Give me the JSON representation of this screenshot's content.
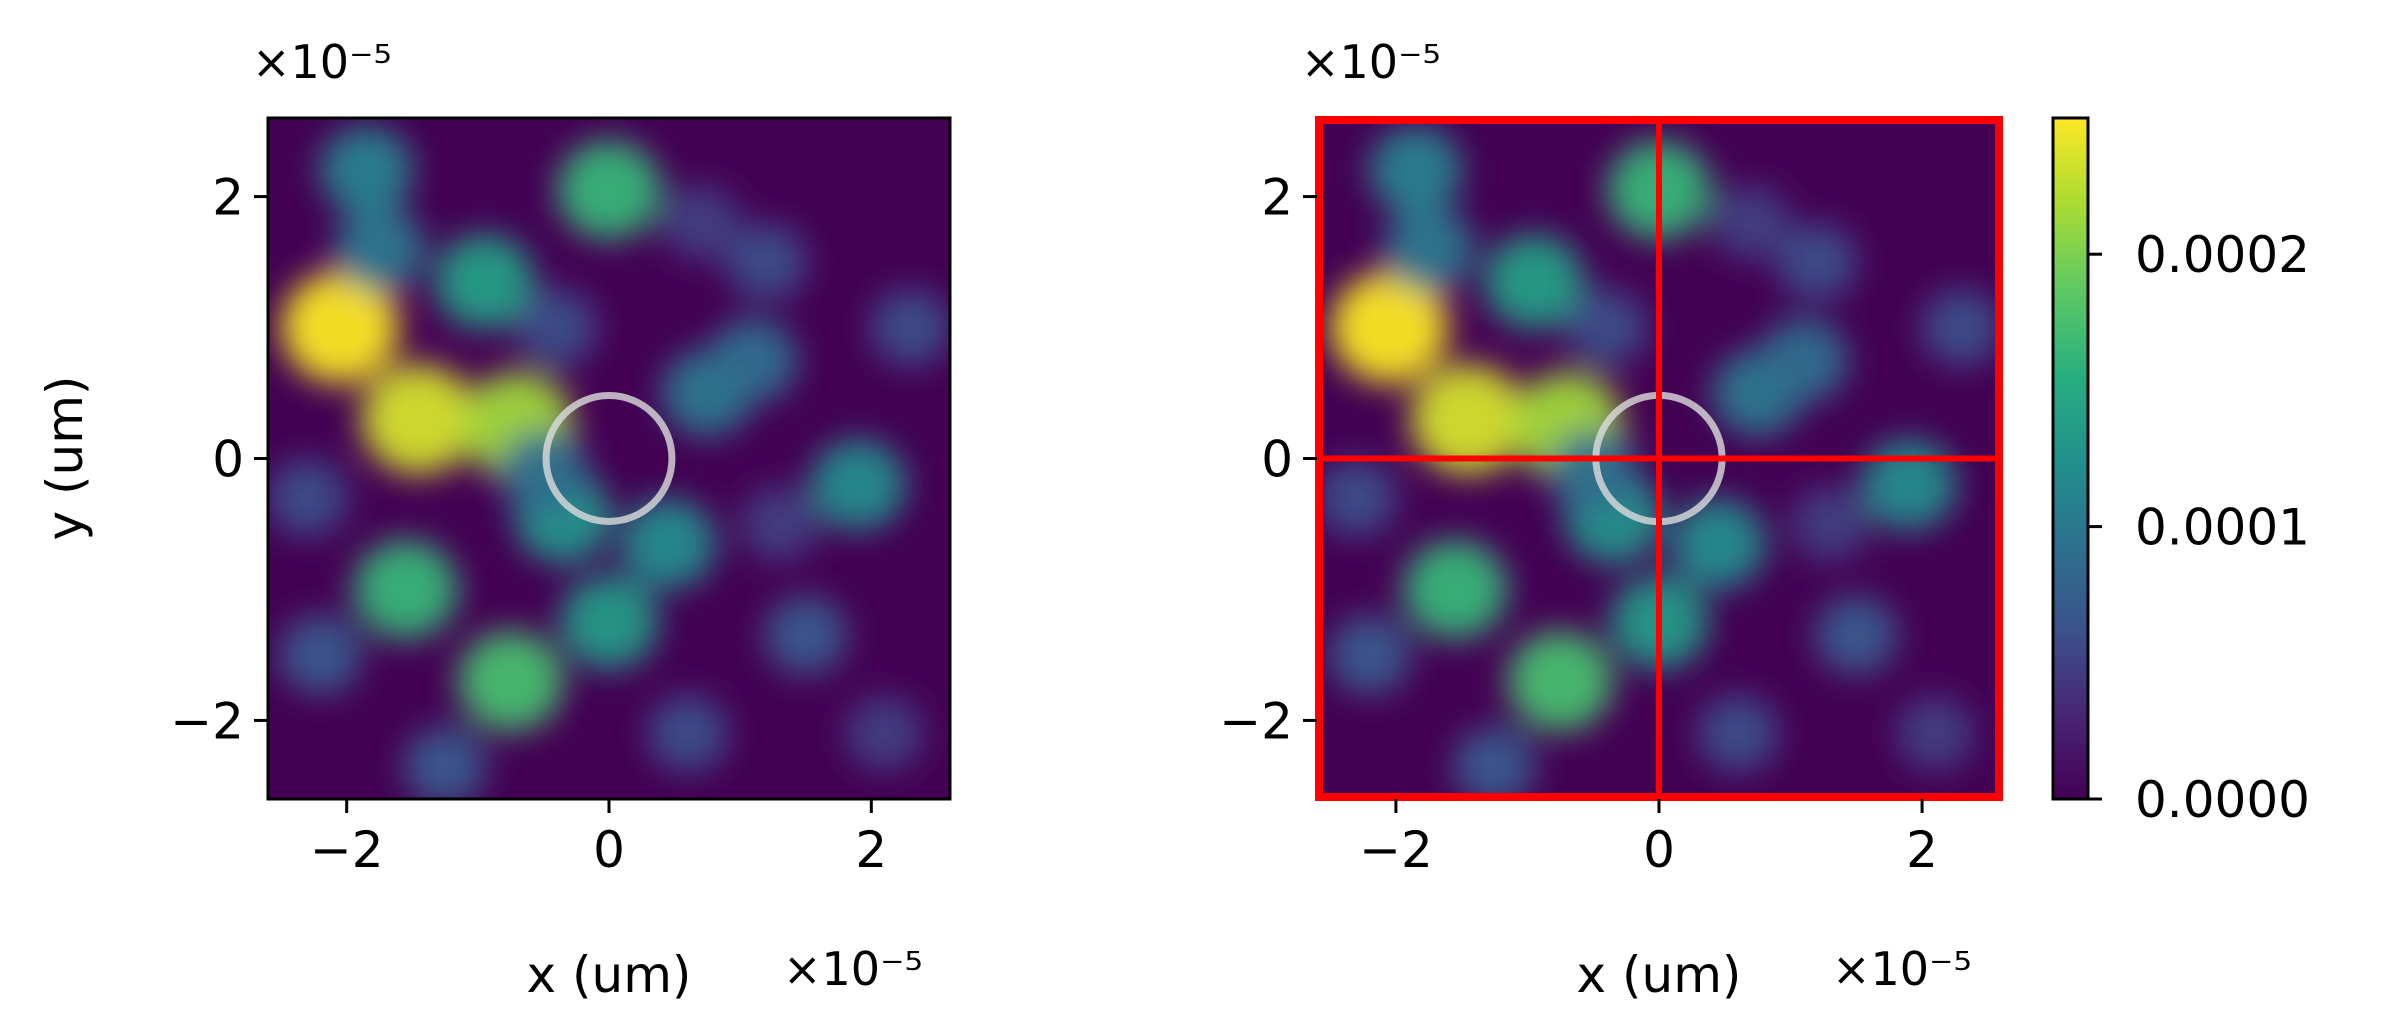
{
  "chart_data": [
    {
      "type": "heatmap",
      "xlabel": "x (um)",
      "ylabel": "y (um)",
      "x_offset_label": "×10⁻⁵",
      "y_offset_label": "×10⁻⁵",
      "xlim": [
        -2.6e-05,
        2.6e-05
      ],
      "ylim": [
        -2.6e-05,
        2.6e-05
      ],
      "x_ticks": [
        {
          "value": -2e-05,
          "label": "−2"
        },
        {
          "value": 0,
          "label": "0"
        },
        {
          "value": 2e-05,
          "label": "2"
        }
      ],
      "y_ticks": [
        {
          "value": 2e-05,
          "label": "2"
        },
        {
          "value": 0,
          "label": "0"
        },
        {
          "value": -2e-05,
          "label": "−2"
        }
      ],
      "colormap": "viridis",
      "annotations": [
        {
          "kind": "circle",
          "center": [
            0,
            0
          ],
          "radius": 4.8e-06,
          "color": "#dcdcdc"
        }
      ],
      "blobs": [
        {
          "x": -2.05e-05,
          "y": 1e-05,
          "value": 0.00025
        },
        {
          "x": -1.45e-05,
          "y": 3e-06,
          "value": 0.000235
        },
        {
          "x": -7e-06,
          "y": 2.5e-06,
          "value": 0.000215
        },
        {
          "x": 0.0,
          "y": 2.05e-05,
          "value": 0.000165
        },
        {
          "x": -1.85e-05,
          "y": 2.2e-05,
          "value": 0.00011
        },
        {
          "x": -1.75e-05,
          "y": 1.6e-05,
          "value": 0.0001
        },
        {
          "x": -9.5e-06,
          "y": 1.35e-05,
          "value": 0.00014
        },
        {
          "x": -1.55e-05,
          "y": -1e-05,
          "value": 0.000165
        },
        {
          "x": -7.5e-06,
          "y": -1.7e-05,
          "value": 0.000175
        },
        {
          "x": -3.5e-06,
          "y": -4.5e-06,
          "value": 0.00013
        },
        {
          "x": 4.5e-06,
          "y": -6.5e-06,
          "value": 0.00012
        },
        {
          "x": 0.0,
          "y": -1.25e-05,
          "value": 0.000135
        },
        {
          "x": 1.9e-05,
          "y": -2e-06,
          "value": 0.00012
        },
        {
          "x": 7.5e-06,
          "y": 5e-06,
          "value": 0.0001
        },
        {
          "x": 1.1e-05,
          "y": 7.5e-06,
          "value": 9e-05
        },
        {
          "x": -2.2e-05,
          "y": -1.5e-05,
          "value": 7e-05
        },
        {
          "x": -1.25e-05,
          "y": -2.35e-05,
          "value": 7e-05
        },
        {
          "x": 1.5e-05,
          "y": -1.35e-05,
          "value": 7e-05
        },
        {
          "x": 1.2e-05,
          "y": 1.5e-05,
          "value": 6e-05
        },
        {
          "x": 2.3e-05,
          "y": 1e-05,
          "value": 6e-05
        },
        {
          "x": 7e-06,
          "y": 1.8e-05,
          "value": 5e-05
        },
        {
          "x": -4e-06,
          "y": 1e-05,
          "value": 6e-05
        },
        {
          "x": 6e-06,
          "y": -2.1e-05,
          "value": 6e-05
        },
        {
          "x": 2.1e-05,
          "y": -2.1e-05,
          "value": 5e-05
        },
        {
          "x": -5e-06,
          "y": -1e-06,
          "value": 9e-05
        },
        {
          "x": 1.3e-05,
          "y": -5e-06,
          "value": 5e-05
        },
        {
          "x": -2.3e-05,
          "y": -3e-06,
          "value": 6e-05
        }
      ]
    },
    {
      "type": "heatmap",
      "xlabel": "x (um)",
      "ylabel": "",
      "x_offset_label": "×10⁻⁵",
      "y_offset_label": "×10⁻⁵",
      "xlim": [
        -2.6e-05,
        2.6e-05
      ],
      "ylim": [
        -2.6e-05,
        2.6e-05
      ],
      "x_ticks": [
        {
          "value": -2e-05,
          "label": "−2"
        },
        {
          "value": 0,
          "label": "0"
        },
        {
          "value": 2e-05,
          "label": "2"
        }
      ],
      "y_ticks": [
        {
          "value": 2e-05,
          "label": "2"
        },
        {
          "value": 0,
          "label": "0"
        },
        {
          "value": -2e-05,
          "label": "−2"
        }
      ],
      "colormap": "viridis",
      "annotations": [
        {
          "kind": "circle",
          "center": [
            0,
            0
          ],
          "radius": 4.8e-06,
          "color": "#dcdcdc"
        },
        {
          "kind": "quadrant-grid",
          "color": "#ff0000",
          "x_split": 0,
          "y_split": 0
        }
      ],
      "same_field_as": 0,
      "colorbar": {
        "min": 0.0,
        "max": 0.00025,
        "ticks": [
          {
            "value": 0.0,
            "label": "0.0000"
          },
          {
            "value": 0.0001,
            "label": "0.0001"
          },
          {
            "value": 0.0002,
            "label": "0.0002"
          }
        ]
      }
    }
  ]
}
